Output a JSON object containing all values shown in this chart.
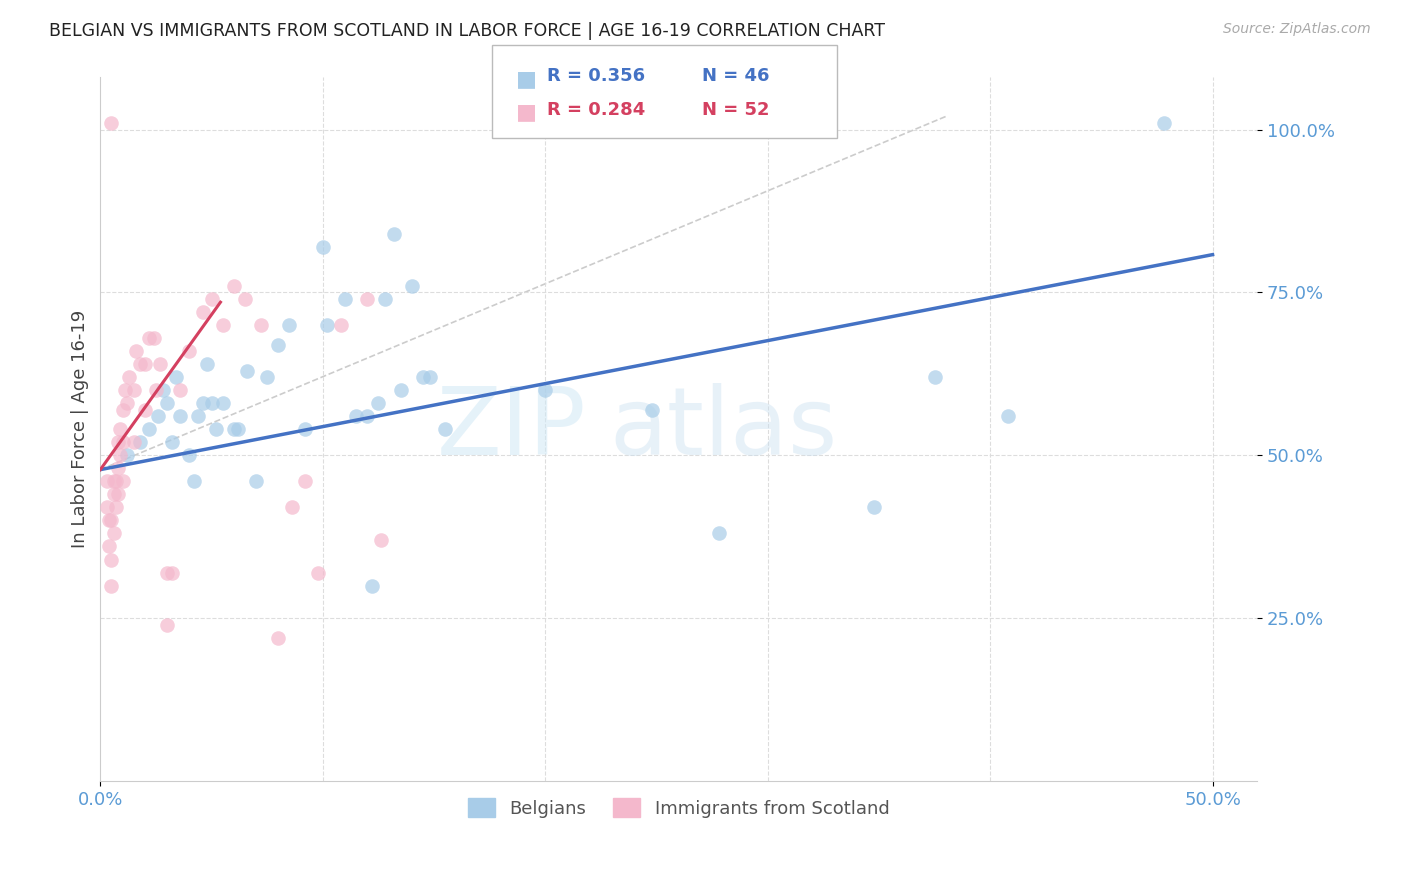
{
  "title": "BELGIAN VS IMMIGRANTS FROM SCOTLAND IN LABOR FORCE | AGE 16-19 CORRELATION CHART",
  "source": "Source: ZipAtlas.com",
  "ylabel": "In Labor Force | Age 16-19",
  "xlim": [
    0.0,
    0.52
  ],
  "ylim": [
    0.0,
    1.08
  ],
  "legend_blue_r": "0.356",
  "legend_blue_n": "46",
  "legend_pink_r": "0.284",
  "legend_pink_n": "52",
  "legend_label_blue": "Belgians",
  "legend_label_pink": "Immigrants from Scotland",
  "watermark_zip": "ZIP",
  "watermark_atlas": "atlas",
  "blue_color": "#a8cce8",
  "pink_color": "#f4b8cc",
  "line_blue": "#4472c4",
  "line_pink": "#d44060",
  "ref_line_color": "#cccccc",
  "title_color": "#222222",
  "ytick_color": "#5b9bd5",
  "xtick_color": "#5b9bd5",
  "grid_color": "#dddddd",
  "blue_line_x0": 0.0,
  "blue_line_y0": 0.478,
  "blue_line_x1": 0.5,
  "blue_line_y1": 0.808,
  "pink_line_x0": 0.0,
  "pink_line_y0": 0.478,
  "pink_line_x1": 0.054,
  "pink_line_y1": 0.735,
  "ref_line_x0": 0.0,
  "ref_line_y0": 0.478,
  "ref_line_x1": 0.38,
  "ref_line_y1": 1.02,
  "blue_scatter_x": [
    0.012,
    0.018,
    0.022,
    0.026,
    0.028,
    0.03,
    0.032,
    0.034,
    0.036,
    0.04,
    0.042,
    0.044,
    0.046,
    0.048,
    0.05,
    0.052,
    0.055,
    0.06,
    0.062,
    0.066,
    0.07,
    0.075,
    0.08,
    0.085,
    0.092,
    0.1,
    0.102,
    0.11,
    0.115,
    0.12,
    0.122,
    0.125,
    0.128,
    0.132,
    0.135,
    0.14,
    0.145,
    0.148,
    0.155,
    0.2,
    0.248,
    0.278,
    0.348,
    0.375,
    0.408,
    0.478
  ],
  "blue_scatter_y": [
    0.5,
    0.52,
    0.54,
    0.56,
    0.6,
    0.58,
    0.52,
    0.62,
    0.56,
    0.5,
    0.46,
    0.56,
    0.58,
    0.64,
    0.58,
    0.54,
    0.58,
    0.54,
    0.54,
    0.63,
    0.46,
    0.62,
    0.67,
    0.7,
    0.54,
    0.82,
    0.7,
    0.74,
    0.56,
    0.56,
    0.3,
    0.58,
    0.74,
    0.84,
    0.6,
    0.76,
    0.62,
    0.62,
    0.54,
    0.6,
    0.57,
    0.38,
    0.42,
    0.62,
    0.56,
    1.01
  ],
  "pink_scatter_x": [
    0.003,
    0.003,
    0.004,
    0.004,
    0.005,
    0.005,
    0.005,
    0.006,
    0.006,
    0.006,
    0.007,
    0.007,
    0.008,
    0.008,
    0.008,
    0.009,
    0.009,
    0.01,
    0.01,
    0.01,
    0.011,
    0.012,
    0.013,
    0.015,
    0.015,
    0.016,
    0.018,
    0.02,
    0.02,
    0.022,
    0.024,
    0.025,
    0.027,
    0.03,
    0.03,
    0.032,
    0.036,
    0.04,
    0.046,
    0.05,
    0.055,
    0.06,
    0.065,
    0.072,
    0.08,
    0.086,
    0.092,
    0.098,
    0.108,
    0.12,
    0.126,
    0.005
  ],
  "pink_scatter_y": [
    0.46,
    0.42,
    0.4,
    0.36,
    0.4,
    0.34,
    0.3,
    0.46,
    0.44,
    0.38,
    0.46,
    0.42,
    0.52,
    0.48,
    0.44,
    0.54,
    0.5,
    0.57,
    0.52,
    0.46,
    0.6,
    0.58,
    0.62,
    0.6,
    0.52,
    0.66,
    0.64,
    0.64,
    0.57,
    0.68,
    0.68,
    0.6,
    0.64,
    0.32,
    0.24,
    0.32,
    0.6,
    0.66,
    0.72,
    0.74,
    0.7,
    0.76,
    0.74,
    0.7,
    0.22,
    0.42,
    0.46,
    0.32,
    0.7,
    0.74,
    0.37,
    1.01
  ]
}
